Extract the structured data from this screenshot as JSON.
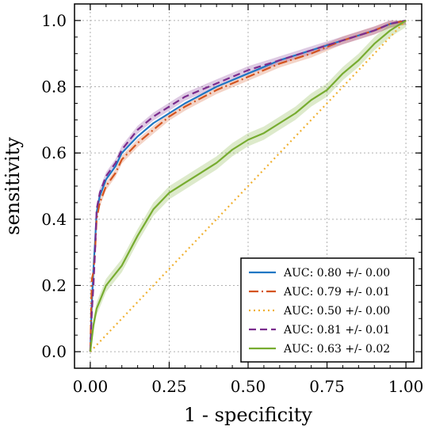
{
  "chart_data": {
    "type": "line",
    "xlabel": "1 - specificity",
    "ylabel": "sensitivity",
    "xlim": [
      -0.05,
      1.05
    ],
    "ylim": [
      -0.05,
      1.05
    ],
    "xticks": [
      "0.00",
      "0.25",
      "0.50",
      "0.75",
      "1.00"
    ],
    "xtick_values": [
      0,
      0.25,
      0.5,
      0.75,
      1.0
    ],
    "yticks": [
      "0.0",
      "0.2",
      "0.4",
      "0.6",
      "0.8",
      "1.0"
    ],
    "ytick_values": [
      0,
      0.2,
      0.4,
      0.6,
      0.8,
      1.0
    ],
    "grid": true,
    "legend_position": "lower-right",
    "series": [
      {
        "name": "AUC: 0.80 +/- 0.00",
        "color": "#1f77c4",
        "dash": "solid",
        "band": 0.0,
        "x": [
          0,
          0.005,
          0.01,
          0.015,
          0.02,
          0.03,
          0.05,
          0.08,
          0.1,
          0.15,
          0.2,
          0.25,
          0.3,
          0.4,
          0.5,
          0.6,
          0.7,
          0.8,
          0.9,
          0.95,
          1.0
        ],
        "y": [
          0,
          0.15,
          0.25,
          0.33,
          0.42,
          0.47,
          0.52,
          0.56,
          0.6,
          0.65,
          0.69,
          0.72,
          0.75,
          0.8,
          0.84,
          0.88,
          0.91,
          0.94,
          0.97,
          0.99,
          1.0
        ]
      },
      {
        "name": "AUC: 0.79 +/- 0.01",
        "color": "#d4541f",
        "dash": "12,4,2,4",
        "band": 0.012,
        "x": [
          0,
          0.005,
          0.01,
          0.015,
          0.02,
          0.03,
          0.05,
          0.08,
          0.1,
          0.15,
          0.2,
          0.25,
          0.3,
          0.4,
          0.5,
          0.6,
          0.7,
          0.8,
          0.9,
          0.95,
          1.0
        ],
        "y": [
          0,
          0.22,
          0.24,
          0.3,
          0.4,
          0.45,
          0.5,
          0.54,
          0.58,
          0.63,
          0.67,
          0.71,
          0.74,
          0.79,
          0.83,
          0.87,
          0.9,
          0.94,
          0.97,
          0.99,
          1.0
        ]
      },
      {
        "name": "AUC: 0.50 +/- 0.00",
        "color": "#f0b030",
        "dash": "2,4",
        "band": 0.0,
        "x": [
          0,
          1.0
        ],
        "y": [
          0,
          1.0
        ]
      },
      {
        "name": "AUC: 0.81 +/- 0.01",
        "color": "#7b2d8e",
        "dash": "9,5",
        "band": 0.012,
        "x": [
          0,
          0.005,
          0.01,
          0.015,
          0.02,
          0.03,
          0.05,
          0.08,
          0.1,
          0.15,
          0.2,
          0.25,
          0.3,
          0.4,
          0.5,
          0.6,
          0.7,
          0.8,
          0.9,
          0.95,
          1.0
        ],
        "y": [
          0,
          0.12,
          0.2,
          0.3,
          0.43,
          0.48,
          0.53,
          0.57,
          0.61,
          0.67,
          0.71,
          0.74,
          0.77,
          0.81,
          0.85,
          0.88,
          0.91,
          0.94,
          0.97,
          0.99,
          1.0
        ]
      },
      {
        "name": "AUC: 0.63 +/- 0.02",
        "color": "#77ac30",
        "dash": "solid",
        "band": 0.02,
        "x": [
          0,
          0.01,
          0.02,
          0.05,
          0.1,
          0.15,
          0.2,
          0.25,
          0.3,
          0.35,
          0.4,
          0.45,
          0.5,
          0.55,
          0.6,
          0.65,
          0.7,
          0.75,
          0.8,
          0.85,
          0.9,
          0.95,
          1.0
        ],
        "y": [
          0,
          0.08,
          0.13,
          0.2,
          0.26,
          0.35,
          0.43,
          0.48,
          0.51,
          0.54,
          0.57,
          0.61,
          0.64,
          0.66,
          0.69,
          0.72,
          0.76,
          0.79,
          0.84,
          0.88,
          0.93,
          0.97,
          1.0
        ]
      }
    ]
  }
}
